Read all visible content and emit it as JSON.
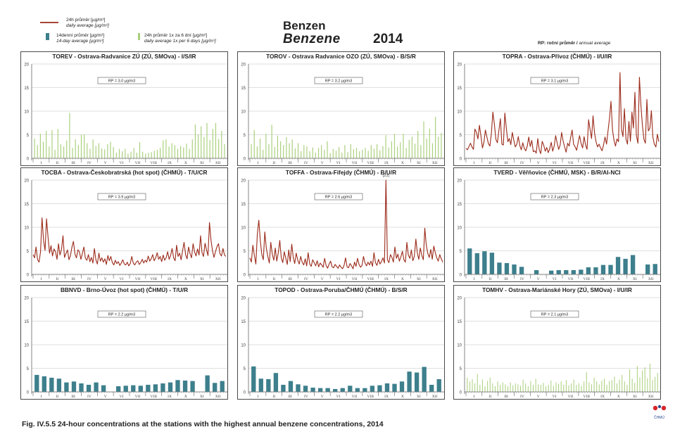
{
  "header": {
    "title_cz": "Benzen",
    "title_en": "Benzene",
    "year": "2014",
    "rp_note_cz": "RP: roční průměr / ",
    "rp_note_en": "annual average"
  },
  "legend": {
    "line_cz": "24h průměr [µg/m³]",
    "line_en": "daily average [µg/m³]",
    "bar_cz": "14denní průměr [µg/m³]",
    "bar_en": "14-day average [µg/m³]",
    "green_cz": "24h průměr 1x za 6 dní [µg/m³]",
    "green_en": "daily average 1x per 6 days [µg/m³]"
  },
  "colors": {
    "line": "#9b2a1a",
    "bar": "#3d7f8c",
    "green": "#a9cf7a",
    "frame": "#4a4a4a",
    "grid": "#bfbfbf"
  },
  "months": [
    "I",
    "II",
    "III",
    "IV",
    "V",
    "VI",
    "VII",
    "VIII",
    "IX",
    "X",
    "XI",
    "XII"
  ],
  "caption": "Fig. IV.5.5  24-hour concentrations at the stations with the highest annual benzene concentrations, 2014",
  "logo_text": "ČHMÚ",
  "chart_data": [
    {
      "type": "bar",
      "style": "green",
      "title": "TOREV - Ostrava-Radvanice ZÚ (ZÚ, SMOva) - I/S/IR",
      "annotation": "RP = 3.0 µg/m3",
      "ylim": [
        0,
        20
      ],
      "yticks": [
        0,
        5,
        10,
        15,
        20
      ],
      "grid": true,
      "values": [
        4.2,
        2.8,
        5.2,
        3.5,
        5.8,
        2.5,
        6.0,
        1.8,
        6.2,
        3.0,
        2.5,
        3.8,
        9.6,
        2.2,
        4.0,
        2.8,
        5.0,
        5.1,
        3.2,
        2.0,
        4.0,
        2.6,
        3.2,
        2.1,
        1.9,
        3.0,
        3.5,
        2.4,
        1.2,
        2.0,
        1.5,
        2.0,
        1.0,
        1.4,
        2.2,
        1.2,
        3.4,
        1.4,
        1.0,
        1.2,
        1.3,
        1.6,
        1.8,
        2.2,
        3.8,
        4.0,
        2.5,
        3.2,
        2.8,
        2.0,
        2.6,
        2.3,
        3.1,
        2.0,
        4.0,
        7.2,
        5.1,
        6.8,
        4.5,
        7.5,
        3.9,
        6.2,
        7.5,
        4.1,
        5.8,
        3.0
      ]
    },
    {
      "type": "bar",
      "style": "green",
      "title": "TOROV - Ostrava Radvanice OZO (ZÚ, SMOva) - B/S/R",
      "annotation": "RP = 3.2 µg/m3",
      "ylim": [
        0,
        20
      ],
      "yticks": [
        0,
        5,
        10,
        15,
        20
      ],
      "grid": true,
      "values": [
        3.0,
        6.0,
        2.5,
        4.2,
        1.8,
        5.2,
        3.0,
        7.1,
        2.4,
        4.8,
        3.6,
        2.8,
        4.5,
        3.2,
        4.0,
        2.1,
        3.2,
        1.5,
        2.8,
        2.5,
        1.5,
        2.3,
        1.2,
        2.2,
        2.8,
        1.8,
        3.6,
        1.1,
        2.0,
        1.6,
        2.4,
        1.2,
        2.8,
        1.3,
        3.0,
        1.9,
        2.2,
        1.5,
        1.8,
        2.2,
        1.6,
        2.8,
        2.0,
        3.0,
        1.7,
        2.6,
        4.9,
        2.3,
        3.6,
        5.2,
        2.5,
        3.4,
        5.2,
        2.2,
        3.9,
        4.6,
        3.1,
        5.8,
        2.8,
        7.8,
        4.2,
        6.3,
        3.2,
        8.8,
        4.6,
        5.4
      ]
    },
    {
      "type": "line",
      "title": "TOPRA - Ostrava-Přívoz (ČHMÚ) - I/U/IR",
      "annotation": "RP = 3.1 µg/m3",
      "ylim": [
        0,
        20
      ],
      "yticks": [
        0,
        5,
        10,
        15,
        20
      ],
      "grid": true,
      "values": [
        2.1,
        1.8,
        2.5,
        3.2,
        2.4,
        1.9,
        6.2,
        5.5,
        4.1,
        7.0,
        4.8,
        2.2,
        3.4,
        6.0,
        4.5,
        3.1,
        2.6,
        5.3,
        9.8,
        7.2,
        4.0,
        3.3,
        5.8,
        8.4,
        3.0,
        2.8,
        9.6,
        6.4,
        3.5,
        4.2,
        2.9,
        5.5,
        3.8,
        2.4,
        3.0,
        4.6,
        2.7,
        1.8,
        3.3,
        2.1,
        1.6,
        2.6,
        4.5,
        2.5,
        3.8,
        1.4,
        1.6,
        1.1,
        4.2,
        1.8,
        1.0,
        3.6,
        2.8,
        1.5,
        2.3,
        1.2,
        2.0,
        3.4,
        1.5,
        2.6,
        4.8,
        3.2,
        1.9,
        2.8,
        5.5,
        3.6,
        2.4,
        1.3,
        3.2,
        2.6,
        4.4,
        6.0,
        3.0,
        2.4,
        1.7,
        3.3,
        4.8,
        3.1,
        2.2,
        4.6,
        2.8,
        1.9,
        8.2,
        6.1,
        4.2,
        9.0,
        5.3,
        3.5,
        2.4,
        3.0,
        2.2,
        1.6,
        2.8,
        4.5,
        3.0,
        5.8,
        8.5,
        12.1,
        6.0,
        3.8,
        2.6,
        4.1,
        3.5,
        18.2,
        6.2,
        4.6,
        10.5,
        4.1,
        3.0,
        7.8,
        3.6,
        9.8,
        6.4,
        14.0,
        4.8,
        3.2,
        17.2,
        11.3,
        7.1,
        4.0,
        3.2,
        12.5,
        5.8,
        6.4,
        10.1,
        4.5,
        3.0,
        2.4,
        5.1,
        3.5
      ]
    },
    {
      "type": "line",
      "title": "TOCBA - Ostrava-Českobratrská (hot spot) (ČHMÚ) - T/U/CR",
      "annotation": "RP = 3.9 µg/m3",
      "ylim": [
        0,
        20
      ],
      "yticks": [
        0,
        5,
        10,
        15,
        20
      ],
      "grid": true,
      "values": [
        4.2,
        3.5,
        5.8,
        3.1,
        2.6,
        4.8,
        12.0,
        7.2,
        5.1,
        11.8,
        8.0,
        4.5,
        6.1,
        3.9,
        5.4,
        4.8,
        3.2,
        6.5,
        4.1,
        5.3,
        8.2,
        3.6,
        4.4,
        5.2,
        3.1,
        4.0,
        5.8,
        7.0,
        4.3,
        3.5,
        5.2,
        4.8,
        3.2,
        4.5,
        5.8,
        3.4,
        3.0,
        4.2,
        2.7,
        3.6,
        2.4,
        5.5,
        3.1,
        2.2,
        4.5,
        2.8,
        3.5,
        2.6,
        3.3,
        2.1,
        4.0,
        2.9,
        3.8,
        2.5,
        2.0,
        3.0,
        2.3,
        2.7,
        1.9,
        2.4,
        3.1,
        2.2,
        2.0,
        2.6,
        1.8,
        2.3,
        3.8,
        2.4,
        2.0,
        2.6,
        2.9,
        2.1,
        2.5,
        3.2,
        2.4,
        3.0,
        2.6,
        3.9,
        2.8,
        3.3,
        4.2,
        2.9,
        3.5,
        4.6,
        3.2,
        3.8,
        2.7,
        4.1,
        3.0,
        3.5,
        4.8,
        3.2,
        4.0,
        5.5,
        3.5,
        2.9,
        6.2,
        3.8,
        4.5,
        3.1,
        5.0,
        6.8,
        4.2,
        3.3,
        5.8,
        4.4,
        3.5,
        6.5,
        4.8,
        3.9,
        5.4,
        4.1,
        8.2,
        4.6,
        3.8,
        6.6,
        5.2,
        4.0,
        11.0,
        7.2,
        5.0,
        3.6,
        4.8,
        5.9,
        6.5,
        4.4,
        3.9,
        5.5,
        4.1,
        3.8
      ]
    },
    {
      "type": "line",
      "title": "TOFFA - Ostrava-Fifejdy (ČHMÚ) - B/U/R",
      "annotation": "RP = 2.6 µg/m3",
      "peak_label": "[23]",
      "ylim": [
        0,
        20
      ],
      "yticks": [
        0,
        5,
        10,
        15,
        20
      ],
      "grid": true,
      "values": [
        3.5,
        2.6,
        6.2,
        4.0,
        2.2,
        8.6,
        11.5,
        7.0,
        4.2,
        3.1,
        9.0,
        5.5,
        3.8,
        2.4,
        6.8,
        4.2,
        3.0,
        5.6,
        2.8,
        4.6,
        7.2,
        3.5,
        2.5,
        4.8,
        3.4,
        2.1,
        5.2,
        2.7,
        6.4,
        3.6,
        2.3,
        4.5,
        3.0,
        2.2,
        3.8,
        2.6,
        2.0,
        3.3,
        1.8,
        4.6,
        2.2,
        1.7,
        3.1,
        2.5,
        1.8,
        2.9,
        1.6,
        2.4,
        2.0,
        1.5,
        3.4,
        1.9,
        1.3,
        2.2,
        2.8,
        1.6,
        1.4,
        2.1,
        1.7,
        1.3,
        2.0,
        1.5,
        1.2,
        1.9,
        3.5,
        1.6,
        1.4,
        2.3,
        1.8,
        1.2,
        2.6,
        1.7,
        3.4,
        2.1,
        1.5,
        1.9,
        3.8,
        2.4,
        1.8,
        2.6,
        2.0,
        2.8,
        1.7,
        4.6,
        2.5,
        1.9,
        3.2,
        2.2,
        2.7,
        3.5,
        2.4,
        20.0,
        3.1,
        2.5,
        4.2,
        3.6,
        2.6,
        5.8,
        3.4,
        4.3,
        2.8,
        3.7,
        4.9,
        3.1,
        2.6,
        6.8,
        4.1,
        3.4,
        5.2,
        2.9,
        3.8,
        7.5,
        4.5,
        3.2,
        5.6,
        4.0,
        3.1,
        9.8,
        6.2,
        4.4,
        3.6,
        5.3,
        3.2,
        6.0,
        4.6,
        3.5,
        2.8,
        4.2,
        3.3,
        2.6
      ]
    },
    {
      "type": "bar",
      "style": "teal",
      "title": "TVERD - Věřňovice (ČHMÚ, MSK) - B/R/AI-NCI",
      "annotation": "RP = 2.3 µg/m3",
      "ylim": [
        0,
        20
      ],
      "yticks": [
        0,
        5,
        10,
        15,
        20
      ],
      "grid": true,
      "values": [
        5.5,
        4.5,
        4.9,
        4.6,
        2.5,
        2.4,
        2.1,
        1.6,
        0,
        0.9,
        0,
        0.8,
        0.9,
        0.9,
        0.9,
        1.0,
        1.5,
        1.5,
        2.0,
        2.0,
        3.7,
        3.3,
        4.1,
        0,
        2.1,
        2.2
      ]
    },
    {
      "type": "bar",
      "style": "teal",
      "title": "BBNVD - Brno-Úvoz (hot spot) (ČHMÚ) - T/U/R",
      "annotation": "RP = 2.2 µg/m3",
      "ylim": [
        0,
        20
      ],
      "yticks": [
        0,
        5,
        10,
        15,
        20
      ],
      "grid": true,
      "values": [
        3.6,
        3.3,
        3.0,
        2.8,
        2.0,
        2.2,
        1.8,
        1.5,
        2.0,
        1.4,
        0,
        1.2,
        1.3,
        1.4,
        1.3,
        1.5,
        1.6,
        1.8,
        2.0,
        2.5,
        2.4,
        2.3,
        0,
        3.5,
        1.9,
        2.3
      ]
    },
    {
      "type": "bar",
      "style": "teal",
      "title": "TOPOD - Ostrava-Poruba/ČHMÚ (ČHMÚ) - B/S/R",
      "annotation": "RP = 2.2 µg/m3",
      "ylim": [
        0,
        20
      ],
      "yticks": [
        0,
        5,
        10,
        15,
        20
      ],
      "grid": true,
      "values": [
        5.4,
        2.8,
        2.7,
        4.0,
        1.5,
        2.3,
        1.6,
        1.3,
        0.9,
        0.8,
        0.8,
        0.6,
        0.8,
        1.3,
        0.8,
        0.8,
        1.3,
        1.4,
        1.8,
        1.7,
        2.2,
        4.3,
        4.1,
        5.3,
        1.5,
        2.7
      ]
    },
    {
      "type": "bar",
      "style": "green",
      "title": "TOMHV - Ostrava-Mariánské Hory (ZÚ, SMOva) - I/U/IR",
      "annotation": "RP = 2.1 µg/m3",
      "ylim": [
        0,
        20
      ],
      "yticks": [
        0,
        5,
        10,
        15,
        20
      ],
      "grid": true,
      "values": [
        3.0,
        2.2,
        2.7,
        1.8,
        3.8,
        1.5,
        2.6,
        1.2,
        2.3,
        3.0,
        1.8,
        1.2,
        2.2,
        1.5,
        2.0,
        1.6,
        1.2,
        2.0,
        1.4,
        1.8,
        1.6,
        1.3,
        2.6,
        1.8,
        1.2,
        2.3,
        1.5,
        2.8,
        1.6,
        1.5,
        1.9,
        1.2,
        1.5,
        2.4,
        1.3,
        2.0,
        1.7,
        2.2,
        1.5,
        2.5,
        1.4,
        1.8,
        2.6,
        1.5,
        1.8,
        1.3,
        2.2,
        4.2,
        2.0,
        1.6,
        3.0,
        2.2,
        1.6,
        2.4,
        2.8,
        1.5,
        2.3,
        2.5,
        3.2,
        1.8,
        2.6,
        3.6,
        2.2,
        1.5,
        4.8,
        2.8,
        1.9,
        5.5,
        3.1,
        4.5,
        5.2,
        2.9,
        6.0,
        2.5,
        3.2,
        4.0
      ]
    }
  ]
}
